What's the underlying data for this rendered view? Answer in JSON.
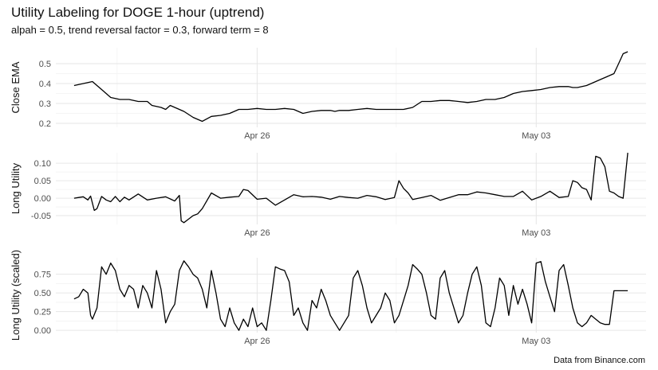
{
  "chart_data": [
    {
      "type": "line",
      "title": "Utility Labeling for DOGE 1-hour (uptrend)",
      "subtitle": "alpah = 0.5, trend reversal factor = 0.3, forward term = 8",
      "ylabel": "Close EMA",
      "ylim": [
        0.18,
        0.58
      ],
      "yticks": [
        0.2,
        0.3,
        0.4,
        0.5
      ],
      "ytick_labels": [
        "0.2",
        "0.3",
        "0.4",
        "0.5"
      ],
      "xticks": [
        "Apr 26",
        "May 03"
      ],
      "grid": true,
      "series": [
        {
          "x_hours_from_start": [
            0,
            10,
            20,
            25,
            30,
            40,
            50,
            60,
            70,
            80,
            85,
            95,
            100,
            105,
            110,
            120,
            130,
            140,
            150,
            160,
            170,
            180,
            190,
            200,
            210,
            220,
            230,
            240,
            250,
            260,
            270,
            280,
            285,
            290,
            300,
            310,
            320,
            330,
            340,
            350,
            360,
            370,
            380,
            390,
            400,
            410,
            420,
            430,
            440,
            450,
            460,
            470,
            480,
            490,
            500,
            510,
            520,
            530,
            540,
            545,
            550,
            560,
            570,
            575,
            580,
            585,
            590,
            595,
            600,
            605
          ],
          "values": [
            0.39,
            0.4,
            0.41,
            0.39,
            0.37,
            0.33,
            0.32,
            0.32,
            0.31,
            0.31,
            0.29,
            0.28,
            0.27,
            0.29,
            0.28,
            0.26,
            0.23,
            0.21,
            0.235,
            0.24,
            0.25,
            0.27,
            0.27,
            0.275,
            0.27,
            0.27,
            0.275,
            0.27,
            0.25,
            0.26,
            0.265,
            0.265,
            0.26,
            0.265,
            0.265,
            0.27,
            0.275,
            0.27,
            0.27,
            0.27,
            0.27,
            0.28,
            0.31,
            0.31,
            0.315,
            0.315,
            0.31,
            0.305,
            0.31,
            0.32,
            0.32,
            0.33,
            0.35,
            0.36,
            0.365,
            0.37,
            0.38,
            0.385,
            0.385,
            0.38,
            0.38,
            0.39,
            0.41,
            0.42,
            0.43,
            0.44,
            0.45,
            0.5,
            0.55,
            0.56
          ]
        }
      ]
    },
    {
      "type": "line",
      "ylabel": "Long Utility",
      "ylim": [
        -0.075,
        0.13
      ],
      "yticks": [
        -0.05,
        0.0,
        0.05,
        0.1
      ],
      "ytick_labels": [
        "-0.05",
        "0.00",
        "0.05",
        "0.10"
      ],
      "xticks": [
        "Apr 26",
        "May 03"
      ],
      "grid": true,
      "series": [
        {
          "x_hours_from_start": [
            0,
            5,
            10,
            15,
            18,
            22,
            25,
            30,
            35,
            40,
            45,
            50,
            55,
            60,
            70,
            80,
            90,
            100,
            110,
            115,
            117,
            120,
            125,
            130,
            135,
            140,
            150,
            160,
            170,
            180,
            185,
            190,
            200,
            210,
            220,
            230,
            240,
            250,
            260,
            270,
            280,
            290,
            300,
            310,
            320,
            330,
            340,
            350,
            355,
            360,
            365,
            370,
            380,
            390,
            400,
            410,
            420,
            430,
            440,
            450,
            460,
            470,
            480,
            490,
            500,
            510,
            520,
            530,
            540,
            545,
            550,
            555,
            560,
            565,
            570,
            575,
            580,
            585,
            590,
            595,
            600,
            605
          ],
          "values": [
            0.0,
            0.002,
            0.004,
            -0.005,
            0.006,
            -0.035,
            -0.03,
            0.005,
            -0.005,
            -0.01,
            0.005,
            -0.01,
            0.003,
            -0.005,
            0.012,
            -0.005,
            0.0,
            0.004,
            -0.008,
            0.008,
            -0.065,
            -0.07,
            -0.06,
            -0.05,
            -0.045,
            -0.03,
            0.015,
            0.0,
            0.003,
            0.005,
            0.025,
            0.022,
            -0.003,
            0.0,
            -0.02,
            -0.005,
            0.01,
            0.004,
            0.005,
            0.003,
            -0.003,
            0.005,
            0.002,
            0.0,
            0.008,
            0.004,
            -0.004,
            0.002,
            0.05,
            0.028,
            0.015,
            -0.004,
            0.002,
            0.008,
            -0.006,
            0.002,
            0.01,
            0.01,
            0.018,
            0.015,
            0.01,
            0.005,
            0.005,
            0.02,
            -0.005,
            0.005,
            0.02,
            0.002,
            0.005,
            0.05,
            0.045,
            0.03,
            0.025,
            -0.005,
            0.12,
            0.115,
            0.09,
            0.02,
            0.015,
            0.005,
            0.0,
            0.13
          ]
        }
      ]
    },
    {
      "type": "line",
      "ylabel": "Long Utility (scaled)",
      "ylim": [
        -0.03,
        0.97
      ],
      "yticks": [
        0.0,
        0.25,
        0.5,
        0.75
      ],
      "ytick_labels": [
        "0.00",
        "0.25",
        "0.50",
        "0.75"
      ],
      "xticks": [
        "Apr 26",
        "May 03"
      ],
      "grid": true,
      "series": [
        {
          "x_hours_from_start": [
            0,
            5,
            10,
            15,
            18,
            20,
            25,
            30,
            35,
            40,
            45,
            50,
            55,
            60,
            65,
            70,
            75,
            80,
            85,
            90,
            95,
            100,
            105,
            110,
            115,
            120,
            125,
            130,
            135,
            140,
            145,
            150,
            155,
            160,
            165,
            170,
            175,
            180,
            185,
            190,
            195,
            200,
            205,
            210,
            215,
            220,
            225,
            230,
            235,
            240,
            245,
            250,
            255,
            260,
            265,
            270,
            275,
            280,
            285,
            290,
            295,
            300,
            305,
            310,
            315,
            320,
            325,
            330,
            335,
            340,
            345,
            350,
            355,
            360,
            365,
            370,
            375,
            380,
            385,
            390,
            395,
            400,
            405,
            410,
            415,
            420,
            425,
            430,
            435,
            440,
            445,
            450,
            455,
            460,
            465,
            470,
            475,
            480,
            485,
            490,
            495,
            500,
            505,
            510,
            515,
            520,
            525,
            530,
            535,
            540,
            545,
            550,
            555,
            560,
            565,
            570,
            575,
            580,
            585,
            590,
            595,
            600,
            605
          ],
          "values": [
            0.42,
            0.45,
            0.55,
            0.5,
            0.2,
            0.15,
            0.3,
            0.85,
            0.75,
            0.9,
            0.8,
            0.55,
            0.45,
            0.6,
            0.55,
            0.3,
            0.6,
            0.5,
            0.3,
            0.8,
            0.55,
            0.1,
            0.25,
            0.35,
            0.8,
            0.93,
            0.85,
            0.75,
            0.7,
            0.55,
            0.3,
            0.8,
            0.5,
            0.15,
            0.05,
            0.3,
            0.1,
            0.0,
            0.15,
            0.05,
            0.3,
            0.05,
            0.1,
            0.0,
            0.4,
            0.85,
            0.82,
            0.8,
            0.65,
            0.2,
            0.3,
            0.1,
            0.0,
            0.4,
            0.3,
            0.55,
            0.4,
            0.2,
            0.1,
            0.0,
            0.1,
            0.2,
            0.7,
            0.8,
            0.6,
            0.3,
            0.1,
            0.2,
            0.3,
            0.5,
            0.4,
            0.1,
            0.2,
            0.4,
            0.6,
            0.88,
            0.82,
            0.75,
            0.5,
            0.2,
            0.15,
            0.7,
            0.8,
            0.5,
            0.3,
            0.1,
            0.2,
            0.5,
            0.75,
            0.85,
            0.6,
            0.1,
            0.05,
            0.3,
            0.7,
            0.6,
            0.2,
            0.6,
            0.35,
            0.55,
            0.35,
            0.1,
            0.9,
            0.92,
            0.65,
            0.45,
            0.25,
            0.8,
            0.88,
            0.6,
            0.3,
            0.1,
            0.05,
            0.1,
            0.2,
            0.15,
            0.1,
            0.08,
            0.08,
            0.53,
            0.53,
            0.53,
            0.53
          ]
        }
      ]
    }
  ],
  "caption": "Data from Binance.com"
}
